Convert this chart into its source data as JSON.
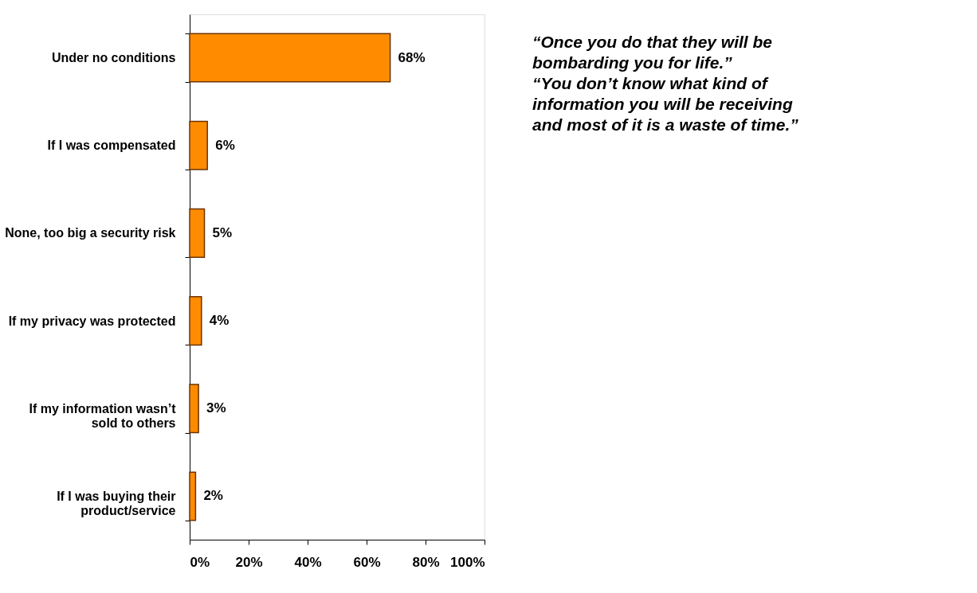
{
  "chart_data": {
    "type": "bar",
    "orientation": "horizontal",
    "categories": [
      "Under no conditions",
      "If I was compensated",
      "None, too big a security risk",
      "If my privacy was protected",
      "If my information wasn’t\nsold to others",
      "If I was buying their\nproduct/service"
    ],
    "values": [
      68,
      6,
      5,
      4,
      3,
      2
    ],
    "value_labels": [
      "68%",
      "6%",
      "5%",
      "4%",
      "3%",
      "2%"
    ],
    "color": "#ff8c00",
    "xlim": [
      0,
      100
    ],
    "xticks": [
      {
        "value": 0,
        "label": "0%"
      },
      {
        "value": 20,
        "label": "20%"
      },
      {
        "value": 40,
        "label": "40%"
      },
      {
        "value": 60,
        "label": "60%"
      },
      {
        "value": 80,
        "label": "80%"
      },
      {
        "value": 100,
        "label": "100%"
      }
    ],
    "grid": false,
    "annotations": [
      "“Once you do that they will be\nbombarding you for life.”\n\n“You don’t know what kind of\ninformation you will be receiving\nand most of it is a waste of time.”"
    ]
  }
}
